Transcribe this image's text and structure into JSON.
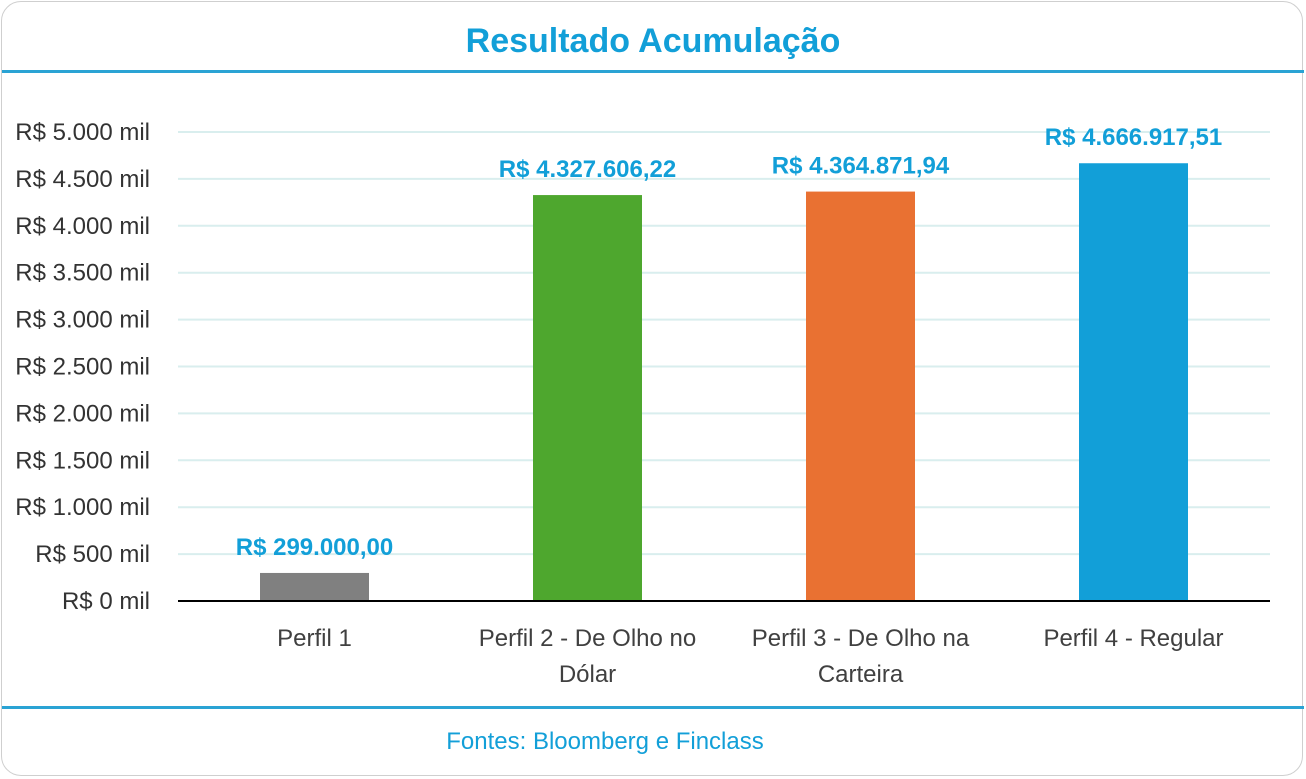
{
  "chart_data": {
    "type": "bar",
    "title": "Resultado Acumulação",
    "categories": [
      "Perfil 1",
      "Perfil 2 - De Olho no Dólar",
      "Perfil 3 - De Olho na Carteira",
      "Perfil 4 - Regular"
    ],
    "category_lines": [
      [
        "Perfil 1"
      ],
      [
        "Perfil 2 - De Olho no",
        "Dólar"
      ],
      [
        "Perfil 3 - De Olho na",
        "Carteira"
      ],
      [
        "Perfil 4 - Regular"
      ]
    ],
    "values": [
      299000.0,
      4327606.22,
      4364871.94,
      4666917.51
    ],
    "data_labels": [
      "R$ 299.000,00",
      "R$ 4.327.606,22",
      "R$ 4.364.871,94",
      "R$ 4.666.917,51"
    ],
    "bar_colors": [
      "#808080",
      "#4ea72e",
      "#e97132",
      "#129fd8"
    ],
    "ylim": [
      0,
      5000000
    ],
    "yticks": [
      0,
      500000,
      1000000,
      1500000,
      2000000,
      2500000,
      3000000,
      3500000,
      4000000,
      4500000,
      5000000
    ],
    "ytick_labels": [
      "R$ 0 mil",
      "R$ 500 mil",
      "R$ 1.000 mil",
      "R$ 1.500 mil",
      "R$ 2.000 mil",
      "R$ 2.500 mil",
      "R$ 3.000 mil",
      "R$ 3.500 mil",
      "R$ 4.000 mil",
      "R$ 4.500 mil",
      "R$ 5.000 mil"
    ],
    "grid": true,
    "xlabel": "",
    "ylabel": ""
  },
  "source": "Fontes: Bloomberg e Finclass",
  "colors": {
    "accent": "#129fd8",
    "grid": "#d9eeee",
    "axis": "#000000"
  }
}
